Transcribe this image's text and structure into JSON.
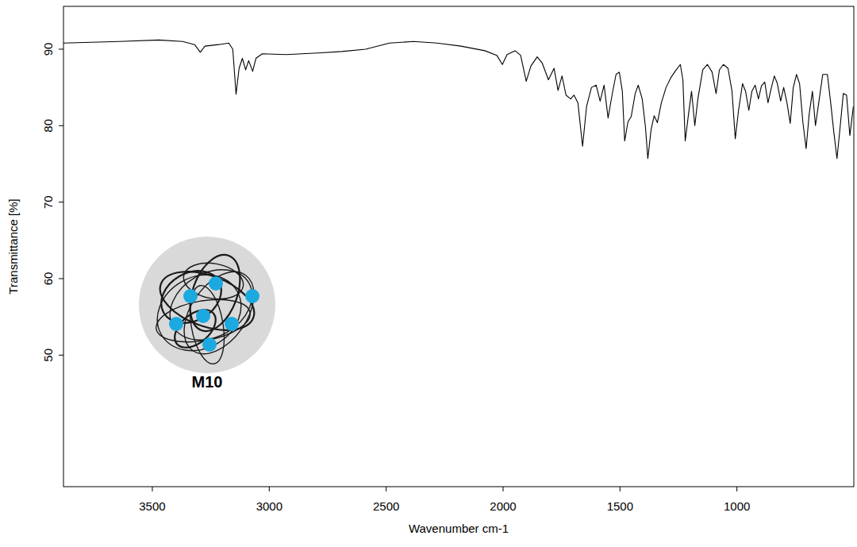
{
  "chart_data": {
    "type": "line",
    "x_label": "Wavenumber cm-1",
    "y_label": "Transmittance [%]",
    "annotations": [
      "M10"
    ],
    "color": "#000000",
    "xlim": [
      3880,
      500
    ],
    "ylim": [
      32.8,
      95.6
    ],
    "xticks": [
      3500,
      3000,
      2500,
      2000,
      1500,
      1000
    ],
    "yticks": [
      50,
      60,
      70,
      80,
      90
    ],
    "x": [
      3880,
      3642,
      3472,
      3370,
      3319,
      3295,
      3275,
      3217,
      3173,
      3156,
      3142,
      3129,
      3115,
      3101,
      3088,
      3071,
      3057,
      3030,
      2928,
      2792,
      2690,
      2588,
      2486,
      2384,
      2282,
      2180,
      2078,
      2027,
      2003,
      1983,
      1949,
      1925,
      1901,
      1881,
      1854,
      1833,
      1806,
      1782,
      1765,
      1748,
      1731,
      1711,
      1697,
      1680,
      1660,
      1643,
      1622,
      1602,
      1585,
      1568,
      1551,
      1534,
      1517,
      1503,
      1490,
      1480,
      1466,
      1452,
      1435,
      1422,
      1405,
      1391,
      1381,
      1367,
      1354,
      1340,
      1323,
      1303,
      1282,
      1262,
      1242,
      1231,
      1221,
      1207,
      1194,
      1180,
      1167,
      1146,
      1126,
      1106,
      1089,
      1075,
      1058,
      1038,
      1021,
      1007,
      993,
      976,
      963,
      949,
      936,
      922,
      908,
      895,
      881,
      867,
      854,
      840,
      827,
      813,
      800,
      786,
      772,
      759,
      745,
      732,
      718,
      704,
      691,
      677,
      664,
      650,
      633,
      613,
      599,
      585,
      572,
      558,
      545,
      531,
      517,
      504,
      502
    ],
    "values": [
      90.8,
      91.0,
      91.2,
      91.0,
      90.6,
      89.6,
      90.4,
      90.6,
      90.8,
      90.0,
      84.1,
      87.5,
      88.8,
      87.3,
      88.5,
      87.1,
      88.8,
      89.4,
      89.3,
      89.5,
      89.7,
      90.0,
      90.8,
      91.0,
      90.8,
      90.4,
      89.8,
      89.2,
      88.0,
      89.3,
      89.8,
      89.2,
      85.8,
      87.8,
      89.0,
      88.2,
      86.0,
      87.5,
      84.6,
      86.5,
      84.0,
      83.5,
      84.0,
      83.0,
      77.3,
      82.5,
      85.0,
      85.3,
      83.2,
      85.3,
      81.0,
      84.0,
      86.7,
      87.0,
      84.5,
      78.0,
      80.5,
      81.2,
      84.2,
      85.3,
      83.5,
      79.8,
      75.7,
      79.5,
      81.3,
      80.4,
      83.0,
      85.0,
      86.3,
      87.2,
      88.0,
      86.0,
      78.0,
      81.5,
      84.5,
      80.0,
      83.5,
      87.3,
      88.0,
      87.0,
      84.2,
      87.3,
      88.0,
      87.5,
      84.5,
      78.3,
      82.0,
      85.5,
      84.5,
      82.0,
      84.5,
      85.3,
      83.5,
      85.2,
      85.7,
      83.0,
      84.8,
      86.5,
      85.5,
      83.2,
      85.0,
      83.0,
      80.3,
      85.0,
      86.7,
      85.5,
      80.5,
      77.0,
      81.5,
      84.5,
      80.0,
      83.0,
      86.7,
      86.7,
      83.0,
      79.0,
      75.7,
      80.0,
      84.2,
      84.0,
      78.7,
      82.0,
      82.5
    ]
  }
}
